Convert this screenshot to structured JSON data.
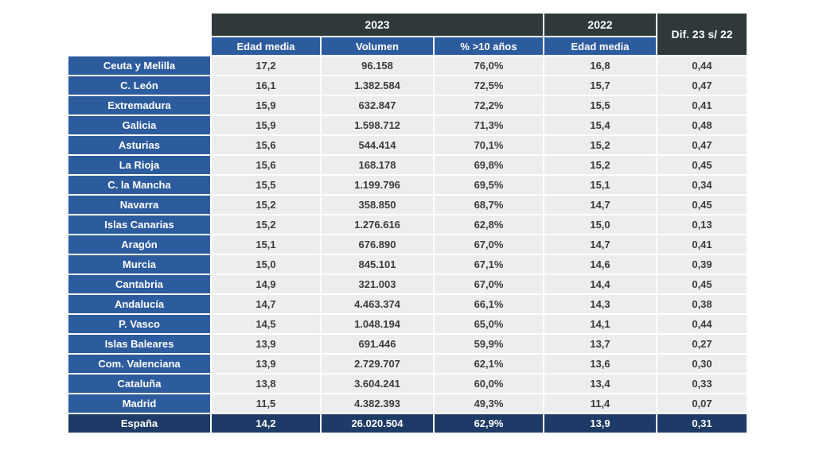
{
  "table": {
    "year_groups": [
      {
        "label": "2023",
        "columns": [
          "Edad media",
          "Volumen",
          "% >10 años"
        ]
      },
      {
        "label": "2022",
        "columns": [
          "Edad media"
        ]
      }
    ],
    "diff_column_label": "Dif. 23 s/ 22",
    "rows": [
      {
        "region": "Ceuta y Melilla",
        "values": [
          "17,2",
          "96.158",
          "76,0%",
          "16,8",
          "0,44"
        ]
      },
      {
        "region": "C. León",
        "values": [
          "16,1",
          "1.382.584",
          "72,5%",
          "15,7",
          "0,47"
        ]
      },
      {
        "region": "Extremadura",
        "values": [
          "15,9",
          "632.847",
          "72,2%",
          "15,5",
          "0,41"
        ]
      },
      {
        "region": "Galicia",
        "values": [
          "15,9",
          "1.598.712",
          "71,3%",
          "15,4",
          "0,48"
        ]
      },
      {
        "region": "Asturias",
        "values": [
          "15,6",
          "544.414",
          "70,1%",
          "15,2",
          "0,47"
        ]
      },
      {
        "region": "La Rioja",
        "values": [
          "15,6",
          "168.178",
          "69,8%",
          "15,2",
          "0,45"
        ]
      },
      {
        "region": "C. la Mancha",
        "values": [
          "15,5",
          "1.199.796",
          "69,5%",
          "15,1",
          "0,34"
        ]
      },
      {
        "region": "Navarra",
        "values": [
          "15,2",
          "358.850",
          "68,7%",
          "14,7",
          "0,45"
        ]
      },
      {
        "region": "Islas Canarias",
        "values": [
          "15,2",
          "1.276.616",
          "62,8%",
          "15,0",
          "0,13"
        ]
      },
      {
        "region": "Aragón",
        "values": [
          "15,1",
          "676.890",
          "67,0%",
          "14,7",
          "0,41"
        ]
      },
      {
        "region": "Murcia",
        "values": [
          "15,0",
          "845.101",
          "67,1%",
          "14,6",
          "0,39"
        ]
      },
      {
        "region": "Cantabria",
        "values": [
          "14,9",
          "321.003",
          "67,0%",
          "14,4",
          "0,45"
        ]
      },
      {
        "region": "Andalucía",
        "values": [
          "14,7",
          "4.463.374",
          "66,1%",
          "14,3",
          "0,38"
        ]
      },
      {
        "region": "P. Vasco",
        "values": [
          "14,5",
          "1.048.194",
          "65,0%",
          "14,1",
          "0,44"
        ]
      },
      {
        "region": "Islas Baleares",
        "values": [
          "13,9",
          "691.446",
          "59,9%",
          "13,7",
          "0,27"
        ]
      },
      {
        "region": "Com. Valenciana",
        "values": [
          "13,9",
          "2.729.707",
          "62,1%",
          "13,6",
          "0,30"
        ]
      },
      {
        "region": "Cataluña",
        "values": [
          "13,8",
          "3.604.241",
          "60,0%",
          "13,4",
          "0,33"
        ]
      },
      {
        "region": "Madrid",
        "values": [
          "11,5",
          "4.382.393",
          "49,3%",
          "11,4",
          "0,07"
        ]
      }
    ],
    "total_row": {
      "region": "España",
      "values": [
        "14,2",
        "26.020.504",
        "62,9%",
        "13,9",
        "0,31"
      ]
    }
  },
  "colors": {
    "header_dark": "#2F393B",
    "header_blue": "#2D5C9E",
    "total_navy": "#1E3A66",
    "row_bg": "#EDEDED",
    "value_text": "#3C3C3C"
  },
  "chart_data": {
    "type": "table",
    "column_groups": [
      {
        "label": "2023",
        "span": 3
      },
      {
        "label": "2022",
        "span": 1
      },
      {
        "label": "Dif. 23 s/ 22",
        "span": 1
      }
    ],
    "columns": [
      "",
      "Edad media",
      "Volumen",
      "% >10 años",
      "Edad media",
      "Dif. 23 s/ 22"
    ],
    "rows": [
      [
        "Ceuta y Melilla",
        "17,2",
        "96.158",
        "76,0%",
        "16,8",
        "0,44"
      ],
      [
        "C. León",
        "16,1",
        "1.382.584",
        "72,5%",
        "15,7",
        "0,47"
      ],
      [
        "Extremadura",
        "15,9",
        "632.847",
        "72,2%",
        "15,5",
        "0,41"
      ],
      [
        "Galicia",
        "15,9",
        "1.598.712",
        "71,3%",
        "15,4",
        "0,48"
      ],
      [
        "Asturias",
        "15,6",
        "544.414",
        "70,1%",
        "15,2",
        "0,47"
      ],
      [
        "La Rioja",
        "15,6",
        "168.178",
        "69,8%",
        "15,2",
        "0,45"
      ],
      [
        "C. la Mancha",
        "15,5",
        "1.199.796",
        "69,5%",
        "15,1",
        "0,34"
      ],
      [
        "Navarra",
        "15,2",
        "358.850",
        "68,7%",
        "14,7",
        "0,45"
      ],
      [
        "Islas Canarias",
        "15,2",
        "1.276.616",
        "62,8%",
        "15,0",
        "0,13"
      ],
      [
        "Aragón",
        "15,1",
        "676.890",
        "67,0%",
        "14,7",
        "0,41"
      ],
      [
        "Murcia",
        "15,0",
        "845.101",
        "67,1%",
        "14,6",
        "0,39"
      ],
      [
        "Cantabria",
        "14,9",
        "321.003",
        "67,0%",
        "14,4",
        "0,45"
      ],
      [
        "Andalucía",
        "14,7",
        "4.463.374",
        "66,1%",
        "14,3",
        "0,38"
      ],
      [
        "P. Vasco",
        "14,5",
        "1.048.194",
        "65,0%",
        "14,1",
        "0,44"
      ],
      [
        "Islas Baleares",
        "13,9",
        "691.446",
        "59,9%",
        "13,7",
        "0,27"
      ],
      [
        "Com. Valenciana",
        "13,9",
        "2.729.707",
        "62,1%",
        "13,6",
        "0,30"
      ],
      [
        "Cataluña",
        "13,8",
        "3.604.241",
        "60,0%",
        "13,4",
        "0,33"
      ],
      [
        "Madrid",
        "11,5",
        "4.382.393",
        "49,3%",
        "11,4",
        "0,07"
      ],
      [
        "España",
        "14,2",
        "26.020.504",
        "62,9%",
        "13,9",
        "0,31"
      ]
    ]
  }
}
